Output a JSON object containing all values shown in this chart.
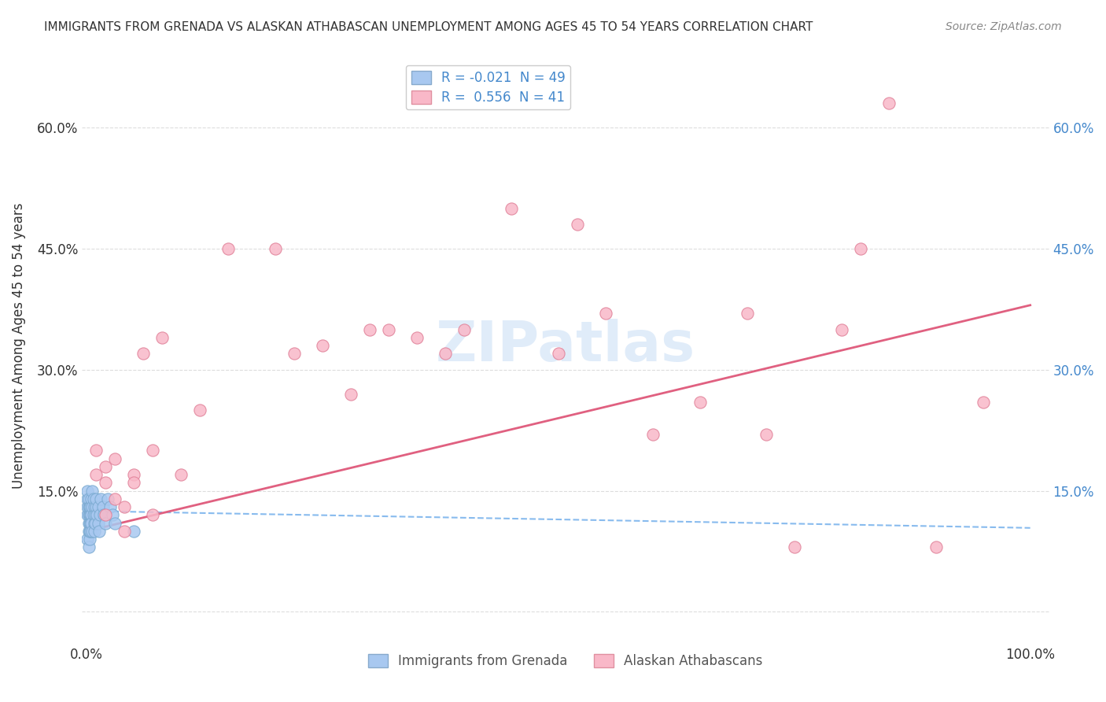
{
  "title": "IMMIGRANTS FROM GRENADA VS ALASKAN ATHABASCAN UNEMPLOYMENT AMONG AGES 45 TO 54 YEARS CORRELATION CHART",
  "source": "Source: ZipAtlas.com",
  "ylabel_label": "Unemployment Among Ages 45 to 54 years",
  "watermark": "ZIPatlas",
  "xlim": [
    0.0,
    1.0
  ],
  "ylim": [
    -0.04,
    0.7
  ],
  "background_color": "#ffffff",
  "grid_color": "#dddddd",
  "scatter_blue": {
    "x": [
      0.001,
      0.001,
      0.001,
      0.001,
      0.001,
      0.002,
      0.002,
      0.002,
      0.002,
      0.002,
      0.002,
      0.003,
      0.003,
      0.003,
      0.003,
      0.003,
      0.004,
      0.004,
      0.004,
      0.004,
      0.005,
      0.005,
      0.005,
      0.006,
      0.006,
      0.006,
      0.007,
      0.007,
      0.008,
      0.008,
      0.008,
      0.009,
      0.009,
      0.01,
      0.01,
      0.011,
      0.012,
      0.012,
      0.013,
      0.014,
      0.015,
      0.017,
      0.018,
      0.02,
      0.022,
      0.025,
      0.027,
      0.03,
      0.05
    ],
    "y": [
      0.12,
      0.13,
      0.14,
      0.15,
      0.09,
      0.12,
      0.13,
      0.11,
      0.1,
      0.08,
      0.14,
      0.11,
      0.12,
      0.09,
      0.1,
      0.13,
      0.12,
      0.11,
      0.13,
      0.1,
      0.14,
      0.12,
      0.11,
      0.15,
      0.13,
      0.1,
      0.12,
      0.14,
      0.11,
      0.13,
      0.1,
      0.12,
      0.11,
      0.13,
      0.14,
      0.12,
      0.11,
      0.13,
      0.1,
      0.12,
      0.14,
      0.13,
      0.12,
      0.11,
      0.14,
      0.13,
      0.12,
      0.11,
      0.1
    ]
  },
  "scatter_pink": {
    "x": [
      0.01,
      0.01,
      0.02,
      0.02,
      0.02,
      0.03,
      0.03,
      0.04,
      0.04,
      0.05,
      0.05,
      0.06,
      0.07,
      0.07,
      0.08,
      0.1,
      0.12,
      0.15,
      0.2,
      0.22,
      0.25,
      0.28,
      0.3,
      0.32,
      0.35,
      0.38,
      0.4,
      0.45,
      0.5,
      0.52,
      0.55,
      0.6,
      0.65,
      0.7,
      0.72,
      0.75,
      0.8,
      0.82,
      0.85,
      0.9,
      0.95
    ],
    "y": [
      0.2,
      0.17,
      0.12,
      0.16,
      0.18,
      0.19,
      0.14,
      0.13,
      0.1,
      0.17,
      0.16,
      0.32,
      0.12,
      0.2,
      0.34,
      0.17,
      0.25,
      0.45,
      0.45,
      0.32,
      0.33,
      0.27,
      0.35,
      0.35,
      0.34,
      0.32,
      0.35,
      0.5,
      0.32,
      0.48,
      0.37,
      0.22,
      0.26,
      0.37,
      0.22,
      0.08,
      0.35,
      0.45,
      0.63,
      0.08,
      0.26
    ]
  },
  "trendline_blue_slope": -0.021,
  "trendline_blue_intercept": 0.125,
  "trendline_pink_slope": 0.28,
  "trendline_pink_intercept": 0.1,
  "ytick_vals": [
    0.0,
    0.15,
    0.3,
    0.45,
    0.6
  ],
  "ytick_labels": [
    "",
    "15.0%",
    "30.0%",
    "45.0%",
    "60.0%"
  ],
  "xtick_vals": [
    0.0,
    1.0
  ],
  "xtick_labels": [
    "0.0%",
    "100.0%"
  ],
  "legend_top": [
    {
      "label": "R = -0.021  N = 49",
      "face": "#a8c8f0",
      "edge": "#88aacc"
    },
    {
      "label": "R =  0.556  N = 41",
      "face": "#f9b8c8",
      "edge": "#e090a0"
    }
  ],
  "legend_bottom": [
    {
      "label": "Immigrants from Grenada",
      "face": "#a8c8f0",
      "edge": "#88aacc"
    },
    {
      "label": "Alaskan Athabascans",
      "face": "#f9b8c8",
      "edge": "#e090a0"
    }
  ]
}
